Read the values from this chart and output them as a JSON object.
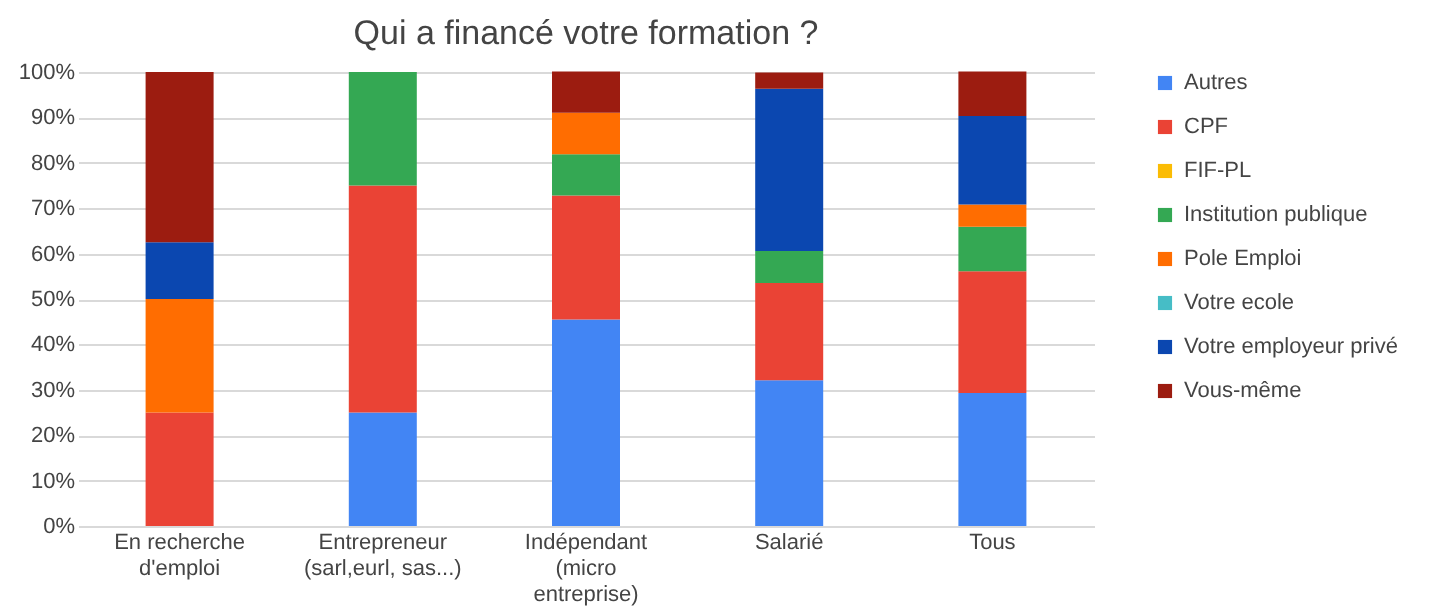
{
  "chart_data": {
    "type": "bar",
    "title": "Qui a financé votre formation ?",
    "stacked": true,
    "legend": "right",
    "grid": "y",
    "categories": [
      "En recherche\nd'emploi",
      "Entrepreneur\n(sarl,eurl, sas...)",
      "Indépendant\n(micro\nentreprise)",
      "Salarié",
      "Tous"
    ],
    "ylim": [
      0,
      100
    ],
    "yticks": [
      {
        "value": 0,
        "label": "0%"
      },
      {
        "value": 10,
        "label": "10%"
      },
      {
        "value": 20,
        "label": "20%"
      },
      {
        "value": 30,
        "label": "30%"
      },
      {
        "value": 40,
        "label": "40%"
      },
      {
        "value": 50,
        "label": "50%"
      },
      {
        "value": 60,
        "label": "60%"
      },
      {
        "value": 70,
        "label": "70%"
      },
      {
        "value": 80,
        "label": "80%"
      },
      {
        "value": 90,
        "label": "90%"
      },
      {
        "value": 100,
        "label": "100%"
      }
    ],
    "series": [
      {
        "name": "Autres",
        "color": "#4285f4",
        "values": [
          0,
          25,
          45.5,
          32.1,
          29.3
        ]
      },
      {
        "name": "CPF",
        "color": "#ea4335",
        "values": [
          25,
          50,
          27.3,
          21.4,
          26.8
        ]
      },
      {
        "name": "FIF-PL",
        "color": "#fbbc04",
        "values": [
          0,
          0,
          0,
          0,
          0
        ]
      },
      {
        "name": "Institution publique",
        "color": "#34a853",
        "values": [
          0,
          25,
          9.1,
          7.1,
          9.8
        ]
      },
      {
        "name": "Pole Emploi",
        "color": "#ff6d01",
        "values": [
          25,
          0,
          9.1,
          0,
          4.9
        ]
      },
      {
        "name": "Votre ecole",
        "color": "#46bdc6",
        "values": [
          0,
          0,
          0,
          0,
          0
        ]
      },
      {
        "name": "Votre employeur privé",
        "color": "#0b47b0",
        "values": [
          12.5,
          0,
          0,
          35.7,
          19.5
        ]
      },
      {
        "name": "Vous-même",
        "color": "#9c1c10",
        "values": [
          37.5,
          0,
          9.1,
          3.6,
          9.8
        ]
      }
    ]
  }
}
